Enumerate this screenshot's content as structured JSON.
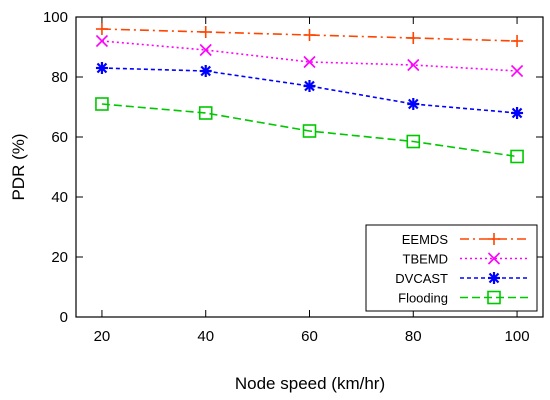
{
  "chart_data": {
    "type": "line",
    "title": "",
    "xlabel": "Node speed (km/hr)",
    "ylabel": "PDR (%)",
    "x": [
      20,
      40,
      60,
      80,
      100
    ],
    "xlim": [
      15,
      105
    ],
    "ylim": [
      0,
      100
    ],
    "xticks": [
      20,
      40,
      60,
      80,
      100
    ],
    "yticks": [
      0,
      20,
      40,
      60,
      80,
      100
    ],
    "grid": false,
    "legend_position": "bottom-right",
    "series": [
      {
        "name": "EEMDS",
        "values": [
          96,
          95,
          94,
          93,
          92
        ],
        "color": "#ff4500",
        "marker": "plus",
        "dash": "dash-dot"
      },
      {
        "name": "TBEMD",
        "values": [
          92,
          89,
          85,
          84,
          82
        ],
        "color": "#ff00ff",
        "marker": "cross",
        "dash": "dotted"
      },
      {
        "name": "DVCAST",
        "values": [
          83,
          82,
          77,
          71,
          68
        ],
        "color": "#0000ff",
        "marker": "asterisk",
        "dash": "short-dash"
      },
      {
        "name": "Flooding",
        "values": [
          71,
          68,
          62,
          58.5,
          53.5
        ],
        "color": "#00c800",
        "marker": "square",
        "dash": "long-dash"
      }
    ]
  }
}
